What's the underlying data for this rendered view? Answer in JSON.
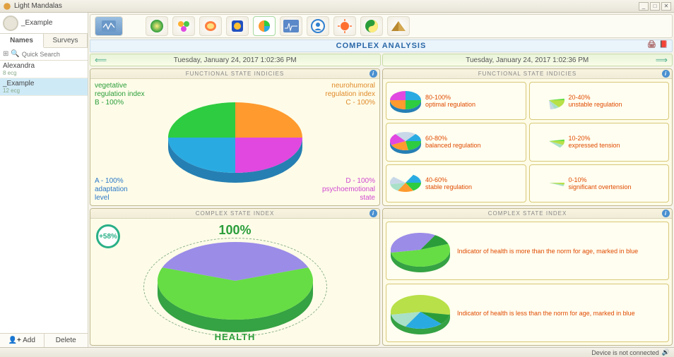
{
  "app_title": "Light Mandalas",
  "colors": {
    "green": "#2ecc40",
    "orange": "#ff9a2e",
    "blue": "#29abe2",
    "magenta": "#e048e0",
    "purple": "#9b8ce8",
    "lime": "#66dd44",
    "lime2": "#b8e048",
    "teal": "#a8e0c8",
    "pale_blue": "#c8d8e8",
    "beige": "#f0e8c8",
    "panel_bg": "#fefce8",
    "red_text": "#e04a00",
    "title_blue": "#2a68a8"
  },
  "profile": {
    "name": "_Example"
  },
  "sidebar": {
    "tabs": [
      "Names",
      "Surveys"
    ],
    "active_tab": 0,
    "search_placeholder": "Quick Search",
    "items": [
      {
        "name": "Alexandra",
        "sub": "8 ecg",
        "selected": false
      },
      {
        "name": "_Example",
        "sub": "12 ecg",
        "selected": true
      }
    ],
    "add_label": "Add",
    "delete_label": "Delete"
  },
  "toolbar": {
    "icons": [
      "wave",
      "green-dot",
      "honeycomb",
      "brain",
      "square",
      "pie",
      "ecg",
      "head",
      "sun",
      "yinyang",
      "pyramid"
    ],
    "active_index": 5
  },
  "title_strip": "COMPLEX ANALYSIS",
  "date_cells": [
    {
      "text": "Tuesday, January 24, 2017 1:02:36 PM",
      "left_arrow": true,
      "right_arrow": false
    },
    {
      "text": "Tuesday, January 24, 2017 1:02:36 PM",
      "left_arrow": false,
      "right_arrow": true
    }
  ],
  "panel_a": {
    "title": "FUNCTIONAL STATE INDICIES",
    "labels": {
      "b": {
        "l1": "vegetative",
        "l2": "regulation index",
        "l3": "B - 100%"
      },
      "c": {
        "l1": "neurohumoral",
        "l2": "regulation index",
        "l3": "C - 100%"
      },
      "a": {
        "l1": "A - 100%",
        "l2": "adaptation",
        "l3": "level"
      },
      "d": {
        "l1": "D - 100%",
        "l2": "psychoemotional",
        "l3": "state"
      }
    },
    "slices": [
      {
        "color": "#2ecc40",
        "start": 180,
        "end": 270
      },
      {
        "color": "#ff9a2e",
        "start": 270,
        "end": 360
      },
      {
        "color": "#29abe2",
        "start": 90,
        "end": 180
      },
      {
        "color": "#e048e0",
        "start": 0,
        "end": 90
      }
    ]
  },
  "panel_b": {
    "title": "COMPLEX STATE INDEX",
    "badge": "+58%",
    "percent": "100%",
    "label": "HEALTH",
    "slices": [
      {
        "color": "#9b8ce8",
        "start": 200,
        "end": 340
      },
      {
        "color": "#66dd44",
        "start": 340,
        "end": 560
      }
    ],
    "side_color": "#2a9d3a"
  },
  "panel_c": {
    "title": "FUNCTIONAL STATE INDICIES",
    "cells": [
      {
        "range": "80-100%",
        "desc": "optimal regulation",
        "slices": [
          [
            "#2ecc40",
            0,
            90
          ],
          [
            "#ff9a2e",
            90,
            180
          ],
          [
            "#e048e0",
            180,
            270
          ],
          [
            "#29abe2",
            270,
            360
          ]
        ]
      },
      {
        "range": "20-40%",
        "desc": "unstable regulation",
        "slices": [
          [
            "#b8e048",
            0,
            50
          ],
          [
            "#66dd44",
            350,
            360
          ],
          [
            "#a8e0c8",
            50,
            70
          ],
          [
            "#c8d8e8",
            70,
            85
          ]
        ]
      },
      {
        "range": "60-80%",
        "desc": "balanced regulation",
        "slices": [
          [
            "#2ecc40",
            0,
            80
          ],
          [
            "#ff9a2e",
            80,
            155
          ],
          [
            "#e048e0",
            155,
            230
          ],
          [
            "#c8d8e8",
            230,
            310
          ],
          [
            "#29abe2",
            310,
            360
          ]
        ]
      },
      {
        "range": "10-20%",
        "desc": "expressed tension",
        "slices": [
          [
            "#b8e048",
            0,
            25
          ],
          [
            "#a8e0c8",
            25,
            45
          ],
          [
            "#66dd44",
            350,
            360
          ]
        ]
      },
      {
        "range": "40-60%",
        "desc": "stable regulation",
        "slices": [
          [
            "#2ecc40",
            0,
            60
          ],
          [
            "#ff9a2e",
            60,
            120
          ],
          [
            "#a8e0c8",
            120,
            170
          ],
          [
            "#c8d8e8",
            170,
            220
          ],
          [
            "#29abe2",
            300,
            360
          ]
        ]
      },
      {
        "range": "0-10%",
        "desc": "significant overtension",
        "slices": [
          [
            "#b8e048",
            0,
            12
          ],
          [
            "#a8e0c8",
            12,
            22
          ]
        ]
      }
    ]
  },
  "panel_d": {
    "title": "COMPLEX STATE INDEX",
    "cells": [
      {
        "text": "Indicator of health is more than the norm for age, marked in blue",
        "slices": [
          [
            "#9b8ce8",
            170,
            300
          ],
          [
            "#2a9d3a",
            300,
            340
          ],
          [
            "#66dd44",
            340,
            530
          ]
        ]
      },
      {
        "text": "Indicator of health is less than the norm for age, marked in blue",
        "slices": [
          [
            "#b8e048",
            170,
            370
          ],
          [
            "#2a9d3a",
            10,
            45
          ],
          [
            "#29abe2",
            45,
            120
          ],
          [
            "#a8e0c8",
            120,
            170
          ]
        ]
      }
    ]
  },
  "status": {
    "text": "Device is not connected"
  }
}
